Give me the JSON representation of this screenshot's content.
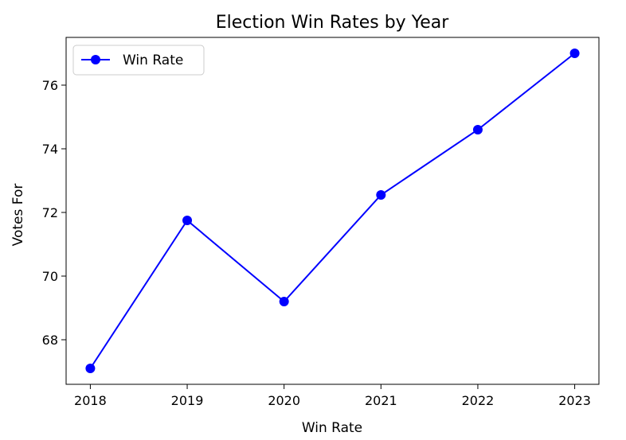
{
  "chart_data": {
    "type": "line",
    "title": "Election Win Rates by Year",
    "xlabel": "Win Rate",
    "ylabel": "Votes For",
    "x": [
      2018,
      2019,
      2020,
      2021,
      2022,
      2023
    ],
    "x_tick_labels": [
      "2018",
      "2019",
      "2020",
      "2021",
      "2022",
      "2023"
    ],
    "y_ticks": [
      68,
      70,
      72,
      74,
      76
    ],
    "y_tick_labels": [
      "68",
      "70",
      "72",
      "74",
      "76"
    ],
    "ylim": [
      66.6,
      77.5
    ],
    "xlim": [
      2017.75,
      2023.25
    ],
    "grid": false,
    "legend_position": "top-left",
    "series": [
      {
        "name": "Win Rate",
        "color": "#0000ff",
        "marker": "circle",
        "values": [
          67.1,
          71.75,
          69.2,
          72.55,
          74.6,
          77.0
        ]
      }
    ]
  }
}
